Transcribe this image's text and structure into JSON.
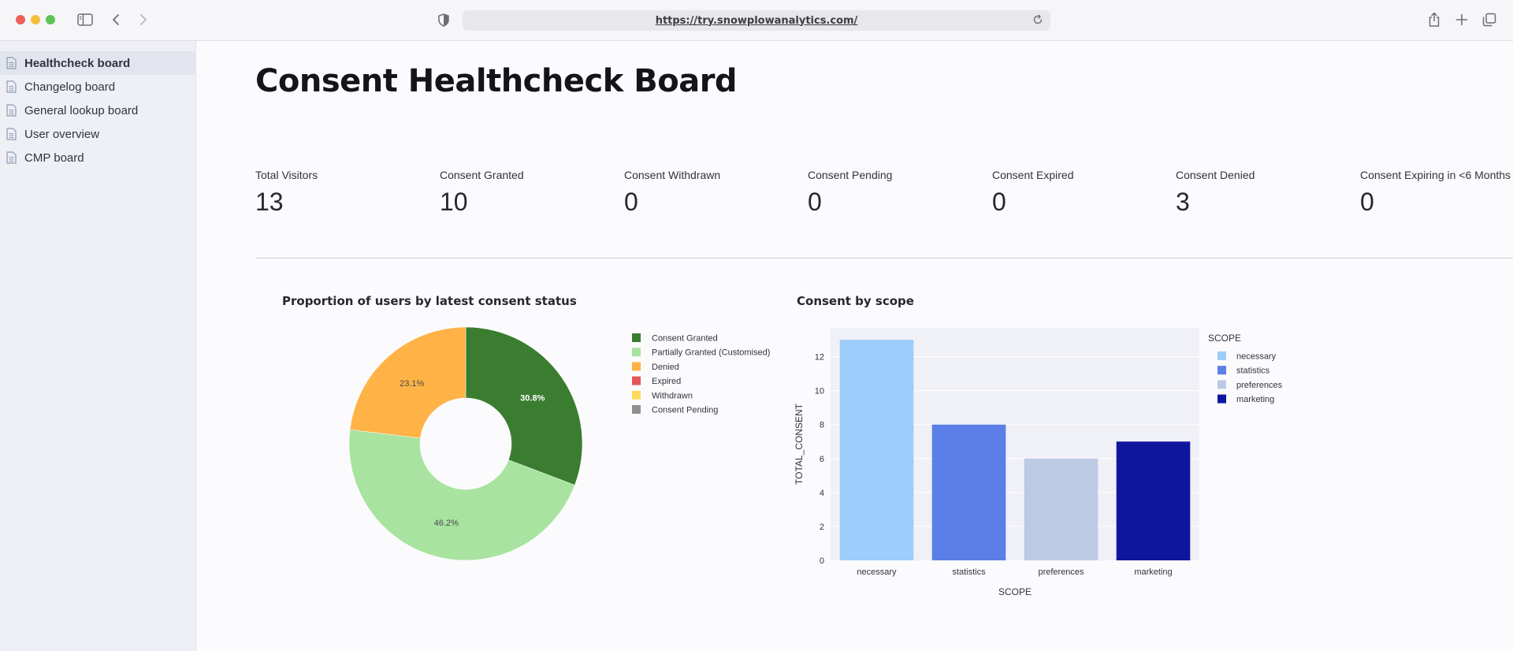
{
  "browser": {
    "url": "https://try.snowplowanalytics.com/"
  },
  "sidebar": {
    "items": [
      {
        "label": "Healthcheck board",
        "active": true
      },
      {
        "label": "Changelog board",
        "active": false
      },
      {
        "label": "General lookup board",
        "active": false
      },
      {
        "label": "User overview",
        "active": false
      },
      {
        "label": "CMP board",
        "active": false
      }
    ]
  },
  "main": {
    "title": "Consent Healthcheck Board",
    "metrics": [
      {
        "label": "Total Visitors",
        "value": "13"
      },
      {
        "label": "Consent Granted",
        "value": "10"
      },
      {
        "label": "Consent Withdrawn",
        "value": "0"
      },
      {
        "label": "Consent Pending",
        "value": "0"
      },
      {
        "label": "Consent Expired",
        "value": "0"
      },
      {
        "label": "Consent Denied",
        "value": "3"
      },
      {
        "label": "Consent Expiring in <6 Months",
        "value": "0"
      }
    ]
  },
  "chart_data": [
    {
      "type": "pie",
      "title": "Proportion of users by latest consent status",
      "hole": true,
      "legend_position": "right",
      "slices": [
        {
          "label": "Consent Granted",
          "value": 30.8,
          "text": "30.8%",
          "color": "#3b7d30"
        },
        {
          "label": "Partially Granted (Customised)",
          "value": 46.2,
          "text": "46.2%",
          "color": "#a8e3a0"
        },
        {
          "label": "Denied",
          "value": 23.1,
          "text": "23.1%",
          "color": "#ffb347"
        },
        {
          "label": "Expired",
          "value": 0,
          "text": "",
          "color": "#e45756"
        },
        {
          "label": "Withdrawn",
          "value": 0,
          "text": "",
          "color": "#ffd95a"
        },
        {
          "label": "Consent Pending",
          "value": 0,
          "text": "",
          "color": "#8f8f8f"
        }
      ]
    },
    {
      "type": "bar",
      "title": "Consent by scope",
      "categories": [
        "necessary",
        "statistics",
        "preferences",
        "marketing"
      ],
      "values": [
        13,
        8,
        6,
        7
      ],
      "colors": [
        "#9ccdfb",
        "#5b7fe6",
        "#bccae4",
        "#0f169e"
      ],
      "xlabel": "SCOPE",
      "ylabel": "TOTAL_CONSENT",
      "ylim": [
        0,
        13.7
      ],
      "yticks": [
        0,
        2,
        4,
        6,
        8,
        10,
        12
      ],
      "legend_title": "SCOPE",
      "legend_position": "right",
      "grid": true
    }
  ]
}
